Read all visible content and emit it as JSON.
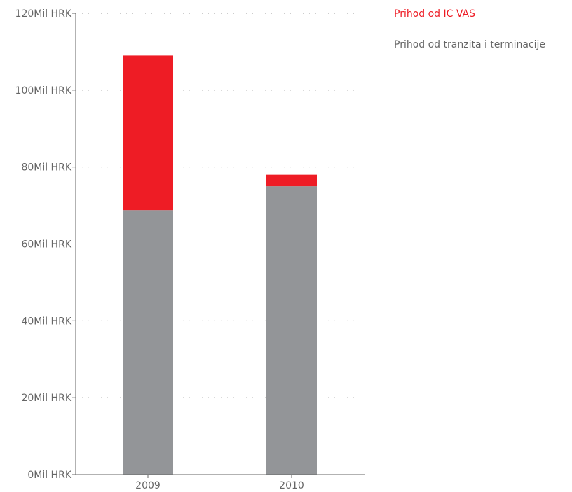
{
  "chart_data": {
    "type": "bar",
    "stacked": true,
    "categories": [
      "2009",
      "2010"
    ],
    "series": [
      {
        "name": "Prihod od tranzita i terminacije",
        "values": [
          68.8,
          75.0
        ],
        "color": "#939598"
      },
      {
        "name": "Prihod od IC VAS",
        "values": [
          40.2,
          3.0
        ],
        "color": "#ee1c25"
      }
    ],
    "y_ticks": [
      "0Mil HRK",
      "20Mil HRK",
      "40Mil HRK",
      "60Mil HRK",
      "80Mil HRK",
      "100Mil HRK",
      "120Mil HRK"
    ],
    "ylim": [
      0,
      120
    ],
    "grid": true,
    "legend_position": "top-right"
  },
  "legend": {
    "items": [
      {
        "label": "Prihod od IC VAS",
        "color": "#ee1c25"
      },
      {
        "label": "Prihod od tranzita i terminacije",
        "color": "#666666"
      }
    ]
  }
}
